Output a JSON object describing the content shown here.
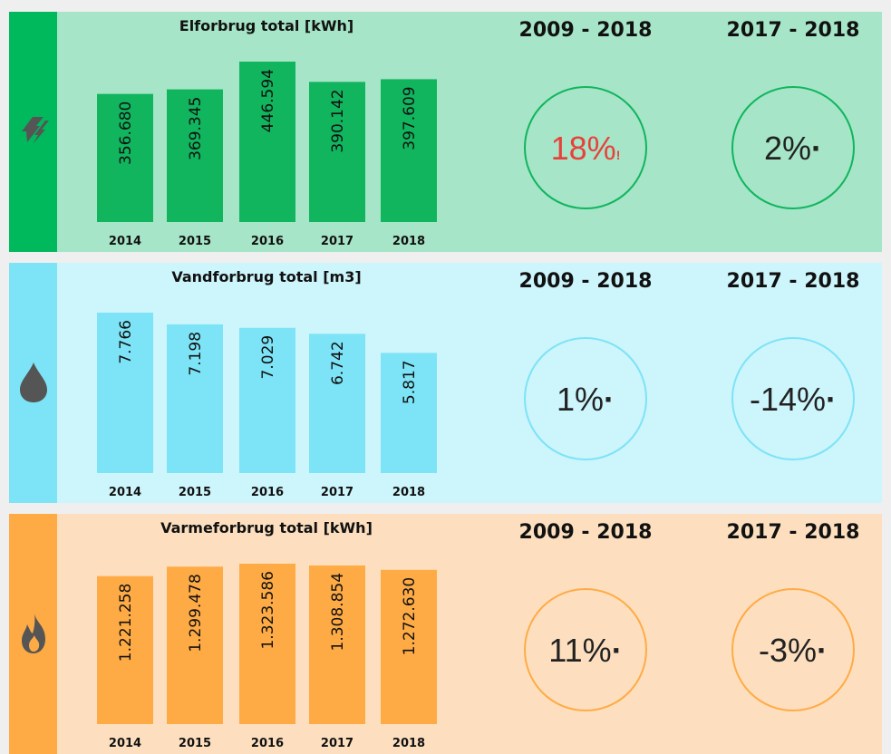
{
  "chart_data": [
    {
      "type": "bar",
      "title": "Elforbrug total [kWh]",
      "color": "#10b55e",
      "strip_color": "#00b95c",
      "panel_color": "#a6e5c7",
      "categories": [
        "2014",
        "2015",
        "2016",
        "2017",
        "2018"
      ],
      "values": [
        356680,
        369345,
        446594,
        390142,
        397609
      ],
      "value_labels": [
        "356.680",
        "369.345",
        "446.594",
        "390.142",
        "397.609"
      ],
      "kpis": [
        {
          "period": "2009 - 2018",
          "text": "18%",
          "marker": "!",
          "color": "#e8413c"
        },
        {
          "period": "2017 - 2018",
          "text": "2%",
          "marker": "·",
          "color": "#222222"
        }
      ]
    },
    {
      "type": "bar",
      "title": "Vandforbrug total [m3]",
      "color": "#7de3f6",
      "strip_color": "#7de3f6",
      "panel_color": "#cdf5fc",
      "categories": [
        "2014",
        "2015",
        "2016",
        "2017",
        "2018"
      ],
      "values": [
        7766,
        7198,
        7029,
        6742,
        5817
      ],
      "value_labels": [
        "7.766",
        "7.198",
        "7.029",
        "6.742",
        "5.817"
      ],
      "kpis": [
        {
          "period": "2009 - 2018",
          "text": "1%",
          "marker": "·",
          "color": "#222222"
        },
        {
          "period": "2017 - 2018",
          "text": "-14%",
          "marker": "·",
          "color": "#222222"
        }
      ]
    },
    {
      "type": "bar",
      "title": "Varmeforbrug total [kWh]",
      "color": "#ffab45",
      "strip_color": "#ffab45",
      "panel_color": "#fddfbf",
      "categories": [
        "2014",
        "2015",
        "2016",
        "2017",
        "2018"
      ],
      "values": [
        1221258,
        1299478,
        1323586,
        1308854,
        1272630
      ],
      "value_labels": [
        "1.221.258",
        "1.299.478",
        "1.323.586",
        "1.308.854",
        "1.272.630"
      ],
      "kpis": [
        {
          "period": "2009 - 2018",
          "text": "11%",
          "marker": "·",
          "color": "#222222"
        },
        {
          "period": "2017 - 2018",
          "text": "-3%",
          "marker": "·",
          "color": "#222222"
        }
      ]
    }
  ]
}
